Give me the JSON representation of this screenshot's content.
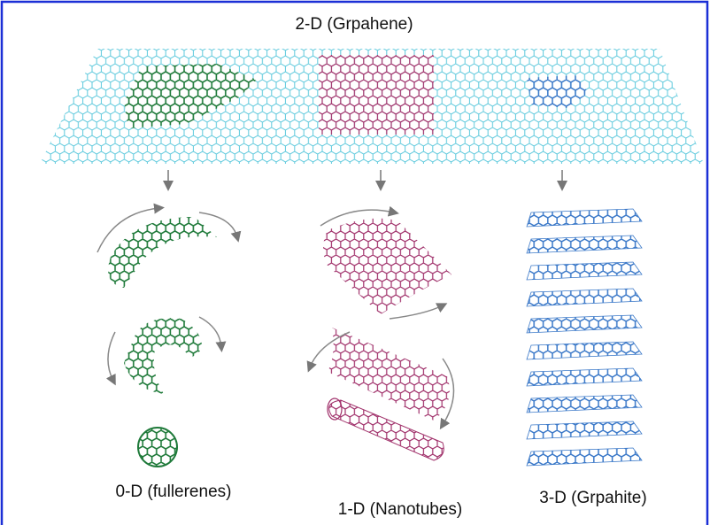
{
  "top_label": "2-D (Grpahene)",
  "labels": [
    "0-D (fullerenes)",
    "1-D (Nanotubes)",
    "3-D (Grpahite)"
  ]
}
